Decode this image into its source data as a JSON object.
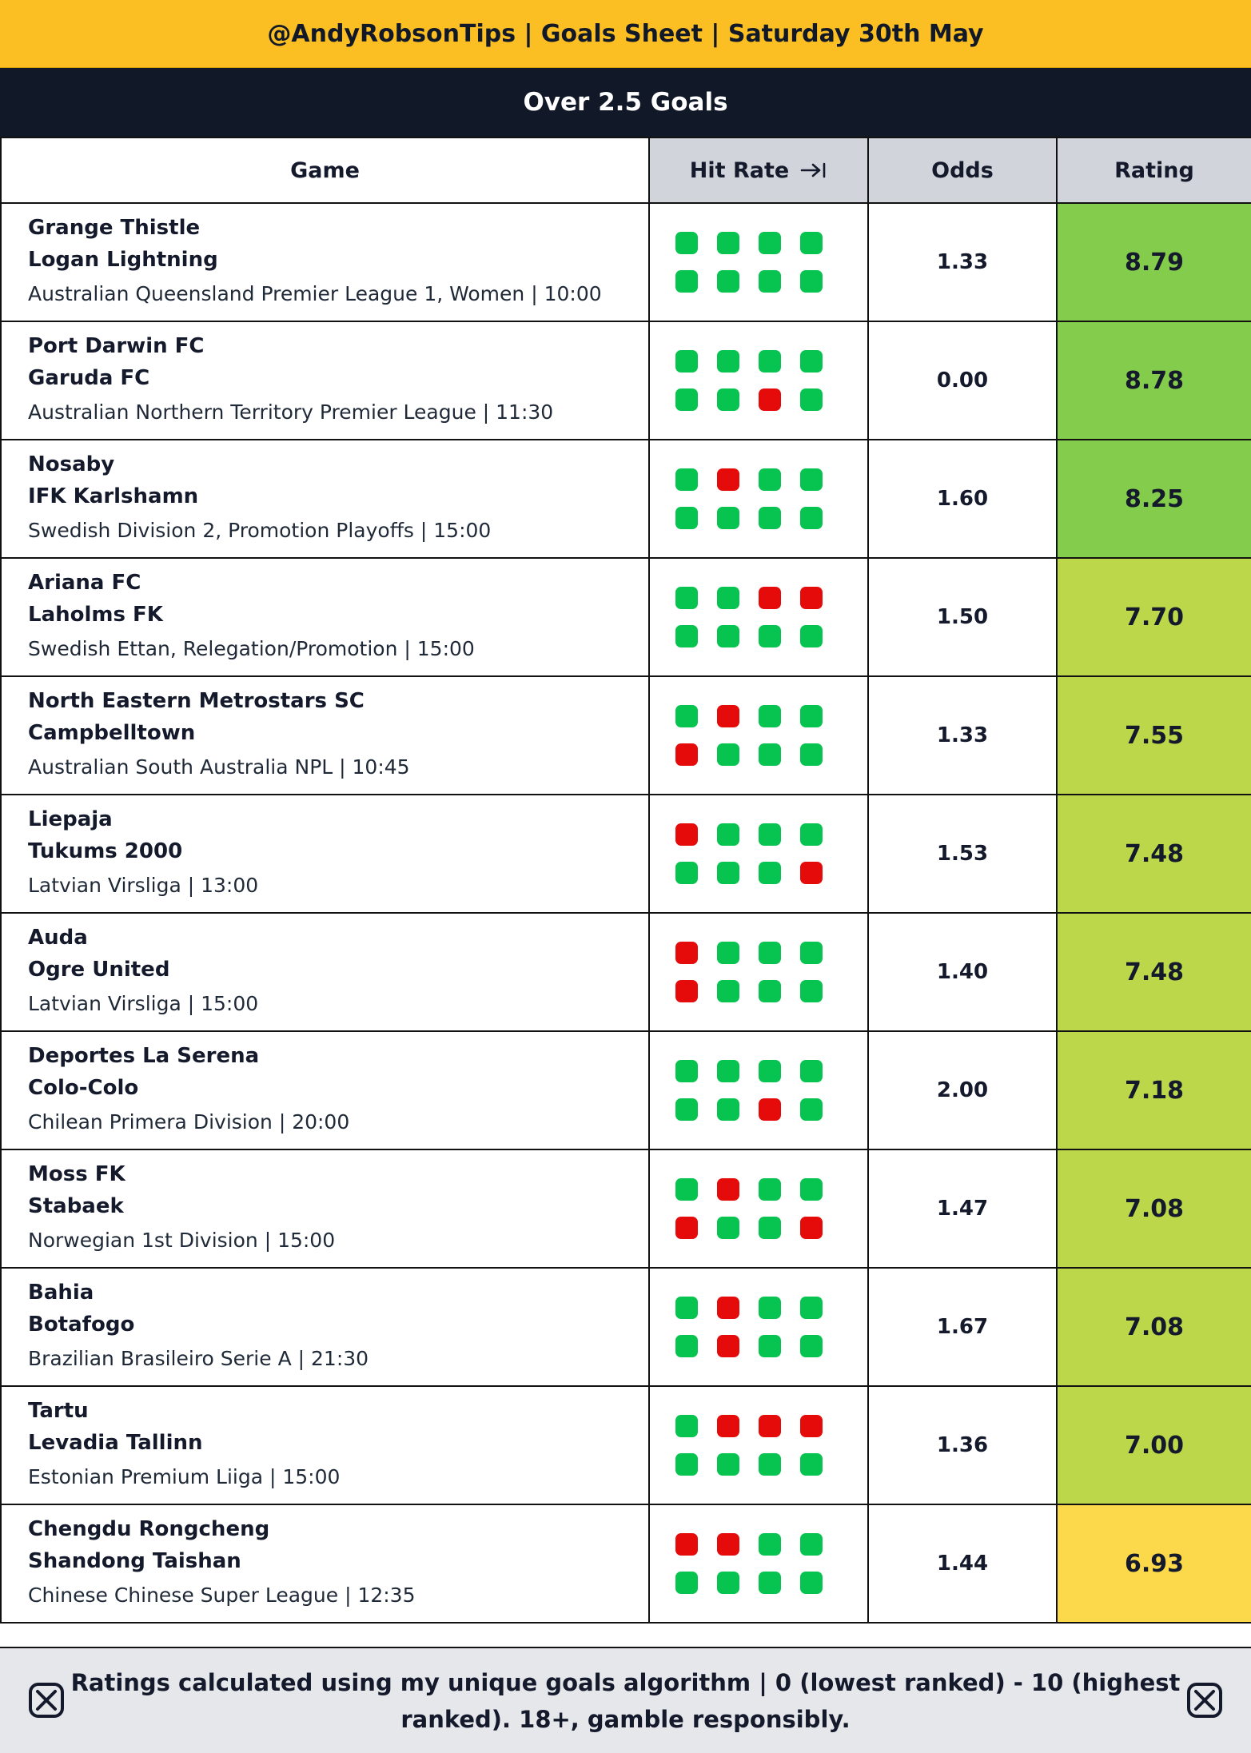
{
  "header": {
    "title": "@AndyRobsonTips | Goals Sheet | Saturday 30th May",
    "subtitle": "Over 2.5 Goals"
  },
  "columns": {
    "game": "Game",
    "hit_rate": "Hit Rate",
    "odds": "Odds",
    "rating": "Rating"
  },
  "icons": {
    "hit_rate_sort": "arrow-right-to-line-icon",
    "footer_logo": "x-logo-icon"
  },
  "colors": {
    "banner": "#fbbf24",
    "subbanner": "#111827",
    "hit": "#06c44f",
    "miss": "#e60b0b",
    "rating_high": "#84cc4c",
    "rating_mid": "#bcd74a",
    "rating_low": "#fcd94a"
  },
  "rows": [
    {
      "home": "Grange Thistle",
      "away": "Logan Lightning",
      "meta": "Australian Queensland Premier League 1, Women | 10:00",
      "hits": [
        "g",
        "g",
        "g",
        "g",
        "g",
        "g",
        "g",
        "g"
      ],
      "odds": "1.33",
      "rating": "8.79",
      "tier": "high"
    },
    {
      "home": "Port Darwin FC",
      "away": "Garuda FC",
      "meta": "Australian Northern Territory Premier League | 11:30",
      "hits": [
        "g",
        "g",
        "g",
        "g",
        "g",
        "g",
        "r",
        "g"
      ],
      "odds": "0.00",
      "rating": "8.78",
      "tier": "high"
    },
    {
      "home": "Nosaby",
      "away": "IFK Karlshamn",
      "meta": "Swedish Division 2, Promotion Playoffs | 15:00",
      "hits": [
        "g",
        "r",
        "g",
        "g",
        "g",
        "g",
        "g",
        "g"
      ],
      "odds": "1.60",
      "rating": "8.25",
      "tier": "high"
    },
    {
      "home": "Ariana FC",
      "away": "Laholms FK",
      "meta": "Swedish Ettan, Relegation/Promotion | 15:00",
      "hits": [
        "g",
        "g",
        "r",
        "r",
        "g",
        "g",
        "g",
        "g"
      ],
      "odds": "1.50",
      "rating": "7.70",
      "tier": "mid"
    },
    {
      "home": "North Eastern Metrostars SC",
      "away": "Campbelltown",
      "meta": "Australian South Australia NPL | 10:45",
      "hits": [
        "g",
        "r",
        "g",
        "g",
        "r",
        "g",
        "g",
        "g"
      ],
      "odds": "1.33",
      "rating": "7.55",
      "tier": "mid"
    },
    {
      "home": "Liepaja",
      "away": "Tukums 2000",
      "meta": "Latvian Virsliga | 13:00",
      "hits": [
        "r",
        "g",
        "g",
        "g",
        "g",
        "g",
        "g",
        "r"
      ],
      "odds": "1.53",
      "rating": "7.48",
      "tier": "mid"
    },
    {
      "home": "Auda",
      "away": "Ogre United",
      "meta": "Latvian Virsliga | 15:00",
      "hits": [
        "r",
        "g",
        "g",
        "g",
        "r",
        "g",
        "g",
        "g"
      ],
      "odds": "1.40",
      "rating": "7.48",
      "tier": "mid"
    },
    {
      "home": "Deportes La Serena",
      "away": "Colo-Colo",
      "meta": "Chilean Primera Division | 20:00",
      "hits": [
        "g",
        "g",
        "g",
        "g",
        "g",
        "g",
        "r",
        "g"
      ],
      "odds": "2.00",
      "rating": "7.18",
      "tier": "mid"
    },
    {
      "home": "Moss FK",
      "away": "Stabaek",
      "meta": "Norwegian 1st Division | 15:00",
      "hits": [
        "g",
        "r",
        "g",
        "g",
        "r",
        "g",
        "g",
        "r"
      ],
      "odds": "1.47",
      "rating": "7.08",
      "tier": "mid"
    },
    {
      "home": "Bahia",
      "away": "Botafogo",
      "meta": "Brazilian Brasileiro Serie A | 21:30",
      "hits": [
        "g",
        "r",
        "g",
        "g",
        "g",
        "r",
        "g",
        "g"
      ],
      "odds": "1.67",
      "rating": "7.08",
      "tier": "mid"
    },
    {
      "home": "Tartu",
      "away": "Levadia Tallinn",
      "meta": "Estonian Premium Liiga | 15:00",
      "hits": [
        "g",
        "r",
        "r",
        "r",
        "g",
        "g",
        "g",
        "g"
      ],
      "odds": "1.36",
      "rating": "7.00",
      "tier": "mid"
    },
    {
      "home": "Chengdu Rongcheng",
      "away": "Shandong Taishan",
      "meta": "Chinese Chinese Super League | 12:35",
      "hits": [
        "r",
        "r",
        "g",
        "g",
        "g",
        "g",
        "g",
        "g"
      ],
      "odds": "1.44",
      "rating": "6.93",
      "tier": "low"
    }
  ],
  "footer": {
    "text": "Ratings calculated using my unique goals algorithm | 0 (lowest ranked) - 10 (highest ranked). 18+, gamble responsibly."
  }
}
